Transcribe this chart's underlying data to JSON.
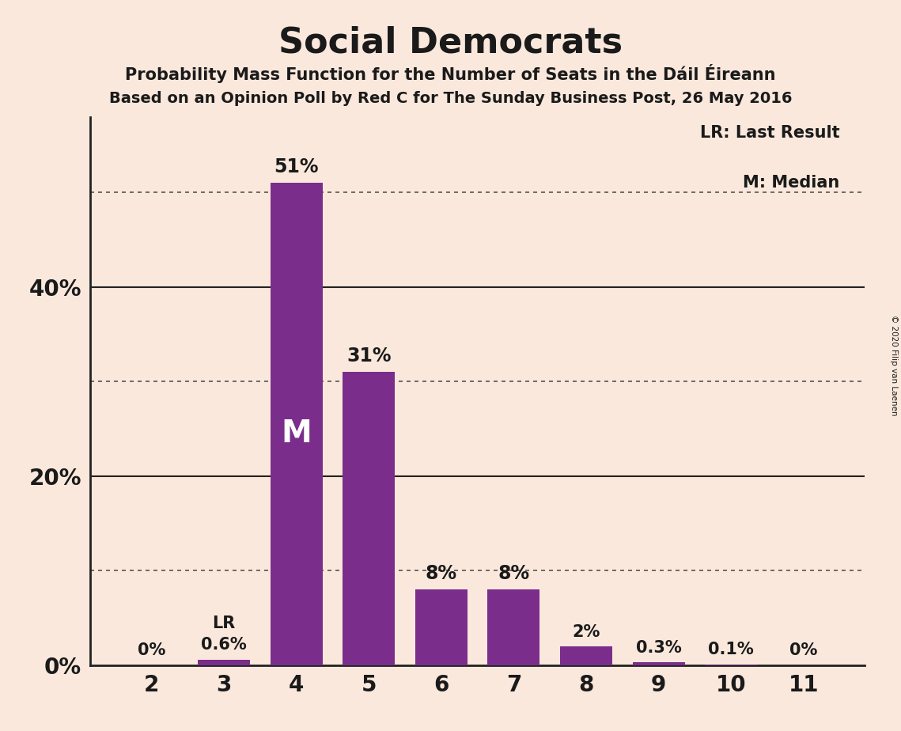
{
  "title": "Social Democrats",
  "subtitle1": "Probability Mass Function for the Number of Seats in the Dáil Éireann",
  "subtitle2": "Based on an Opinion Poll by Red C for The Sunday Business Post, 26 May 2016",
  "copyright": "© 2020 Filip van Laenen",
  "categories": [
    2,
    3,
    4,
    5,
    6,
    7,
    8,
    9,
    10,
    11
  ],
  "values": [
    0.0,
    0.6,
    51.0,
    31.0,
    8.0,
    8.0,
    2.0,
    0.3,
    0.1,
    0.0
  ],
  "bar_labels": [
    "0%",
    "0.6%",
    "51%",
    "31%",
    "8%",
    "8%",
    "2%",
    "0.3%",
    "0.1%",
    "0%"
  ],
  "bar_color": "#7B2D8B",
  "background_color": "#FAE8DC",
  "text_color": "#1a1a1a",
  "solid_lines": [
    20,
    40
  ],
  "dotted_lines": [
    10,
    30,
    50
  ],
  "ytick_positions": [
    0,
    20,
    40
  ],
  "ytick_labels": [
    "0%",
    "20%",
    "40%"
  ],
  "ylim": [
    0,
    58
  ],
  "median_bar": 4,
  "lr_bar": 3,
  "legend_lr": "LR: Last Result",
  "legend_m": "M: Median",
  "median_label": "M",
  "lr_label": "LR"
}
